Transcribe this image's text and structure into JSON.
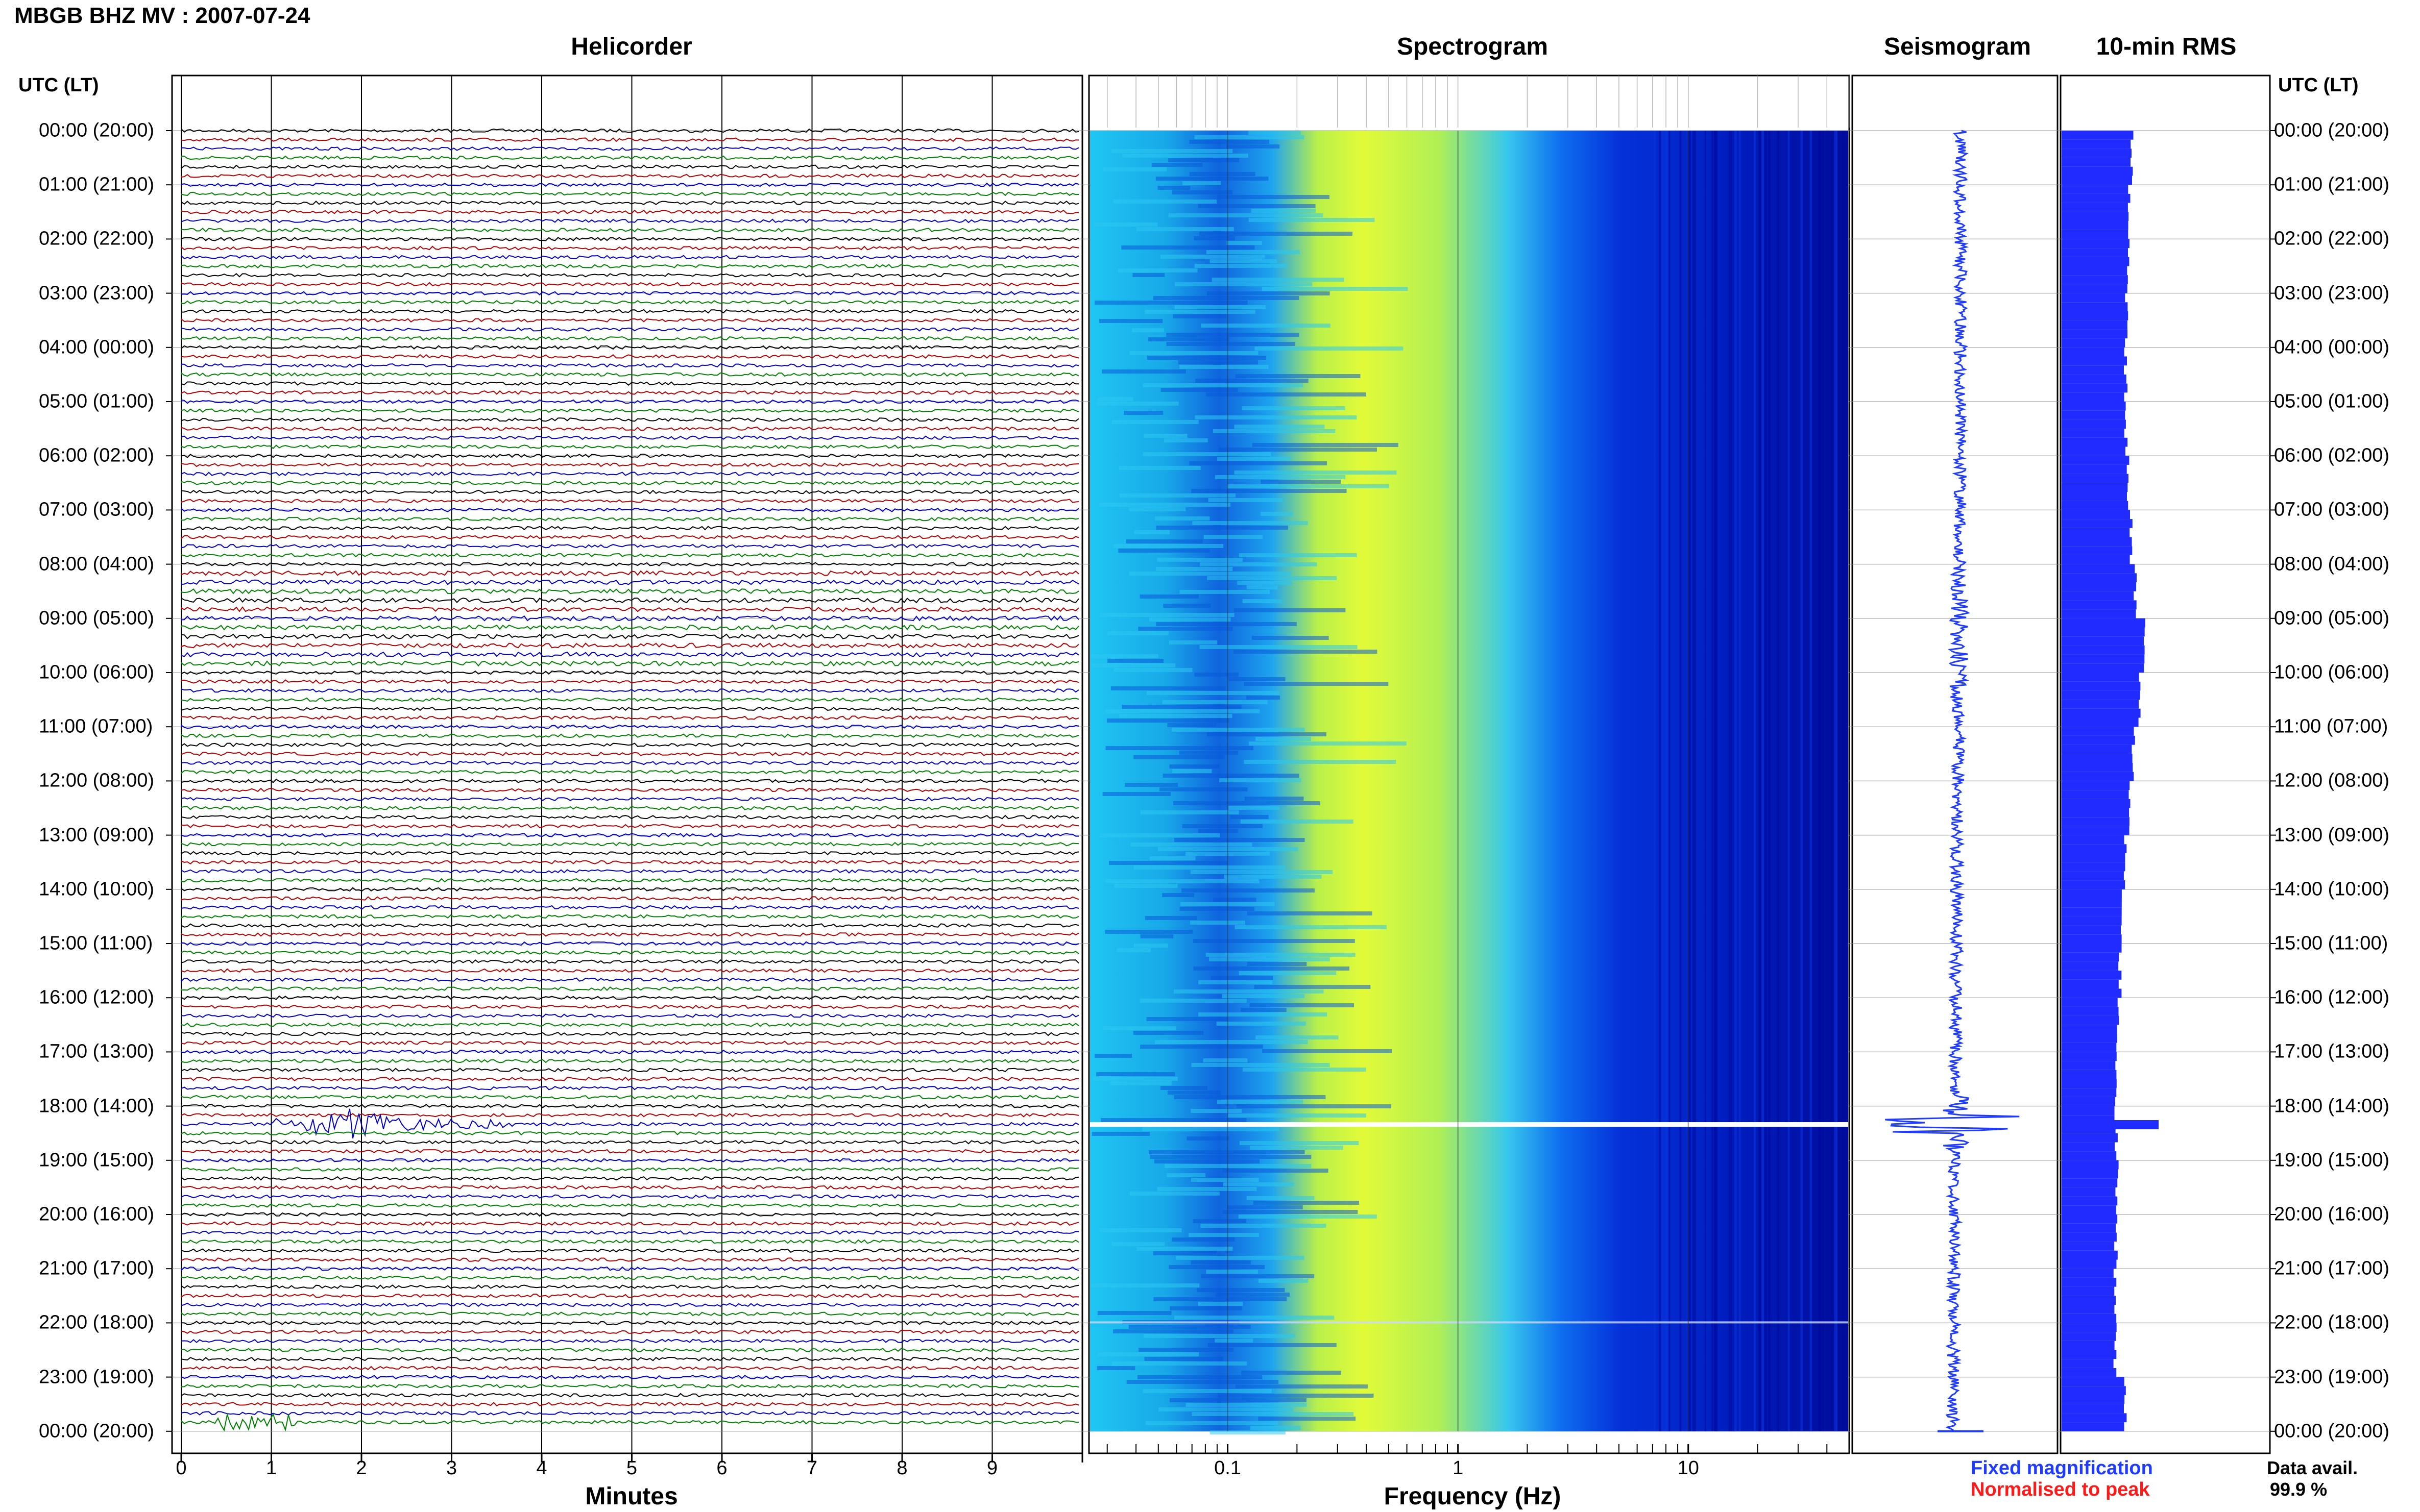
{
  "header": {
    "title": "MBGB BHZ MV : 2007-07-24"
  },
  "panels": {
    "helicorder": "Helicorder",
    "spectrogram": "Spectrogram",
    "seismogram": "Seismogram",
    "rms": "10-min RMS"
  },
  "axis": {
    "utc_label": "UTC (LT)",
    "minutes_label": "Minutes",
    "frequency_label": "Frequency (Hz)"
  },
  "footer": {
    "fixed": "Fixed magnification",
    "normalised": "Normalised to peak",
    "data_avail_label": "Data avail.",
    "data_avail_value": "99.9 %"
  },
  "colors": {
    "trace_cycle": [
      "#000000",
      "#b00000",
      "#0000c0",
      "#008000"
    ],
    "seismogram": "#1f3bff",
    "rms": "#1f2bff",
    "spectrogram_low": "#00008c",
    "spectrogram_high": "#f2ff00"
  },
  "chart_data": [
    {
      "type": "line",
      "title": "Helicorder",
      "xlabel": "Minutes",
      "ylabel": "UTC (LT)",
      "xlim": [
        0,
        10
      ],
      "x_ticks": [
        "0",
        "1",
        "2",
        "3",
        "4",
        "5",
        "6",
        "7",
        "8",
        "9"
      ],
      "y_ticks": [
        "00:00 (20:00)",
        "01:00 (21:00)",
        "02:00 (22:00)",
        "03:00 (23:00)",
        "04:00 (00:00)",
        "05:00 (01:00)",
        "06:00 (02:00)",
        "07:00 (03:00)",
        "08:00 (04:00)",
        "09:00 (05:00)",
        "10:00 (06:00)",
        "11:00 (07:00)",
        "12:00 (08:00)",
        "13:00 (09:00)",
        "14:00 (10:00)",
        "15:00 (11:00)",
        "16:00 (12:00)",
        "17:00 (13:00)",
        "18:00 (14:00)",
        "19:00 (15:00)",
        "20:00 (16:00)",
        "21:00 (17:00)",
        "22:00 (18:00)",
        "23:00 (19:00)",
        "00:00 (20:00)"
      ],
      "rows_per_hour": 6,
      "events": [
        {
          "start_utc": "18:20",
          "minute_start": 1.0,
          "minute_end": 3.7,
          "peak_minute": 1.8
        },
        {
          "start_utc": "23:50",
          "minute_start": 0.4,
          "minute_end": 1.3
        }
      ],
      "grid": true
    },
    {
      "type": "heatmap",
      "title": "Spectrogram",
      "xlabel": "Frequency (Hz)",
      "x_scale": "log",
      "xlim": [
        0.025,
        50
      ],
      "x_ticks": [
        "0.1",
        "1",
        "10"
      ],
      "bright_band_hz": [
        0.2,
        1.0
      ],
      "gap_utc": "18:20",
      "grid": true
    },
    {
      "type": "line",
      "title": "Seismogram",
      "legend": "Fixed magnification",
      "event_utc": "18:20"
    },
    {
      "type": "bar",
      "title": "10-min RMS",
      "legend": "Normalised to peak",
      "hours": [
        0,
        1,
        2,
        3,
        4,
        5,
        6,
        7,
        8,
        9,
        10,
        11,
        12,
        13,
        14,
        15,
        16,
        17,
        18,
        19,
        20,
        21,
        22,
        23
      ],
      "relative_rms": [
        0.72,
        0.7,
        0.68,
        0.67,
        0.66,
        0.66,
        0.68,
        0.72,
        0.76,
        0.85,
        0.8,
        0.74,
        0.7,
        0.66,
        0.62,
        0.6,
        0.58,
        0.55,
        0.56,
        0.57,
        0.56,
        0.55,
        0.55,
        0.66
      ],
      "peak_utc": "18:20",
      "peak_relative_rms": 1.0
    }
  ]
}
